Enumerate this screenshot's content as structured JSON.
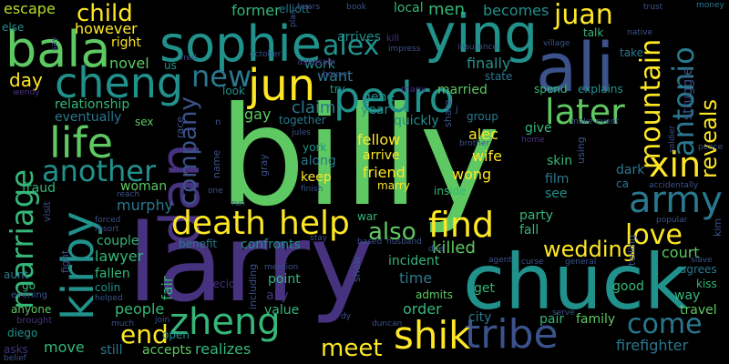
{
  "words": {
    "billy": "billy",
    "larry": "larry",
    "chuck": "chuck",
    "ali": "ali",
    "sophie": "sophie",
    "ying": "ying",
    "bala": "bala",
    "cheng": "cheng",
    "pedro": "pedro",
    "jun": "jun",
    "dan": "dan",
    "kirby": "kirby",
    "life": "life",
    "marriage": "marriage",
    "another": "another",
    "zheng": "zheng",
    "tribe": "tribe",
    "shik": "shik",
    "death": "death",
    "help": "help",
    "find": "find",
    "army": "army",
    "xin": "xin",
    "antonio": "antonio",
    "mountain": "mountain",
    "reveals": "reveals",
    "later": "later",
    "love": "love",
    "wedding": "wedding",
    "come": "come",
    "end": "end",
    "meet": "meet",
    "alex": "alex",
    "juan": "juan",
    "child": "child",
    "new": "new",
    "company": "company",
    "also": "also",
    "escape": "escape",
    "however": "however",
    "former": "former",
    "elliott": "elliott",
    "becomes": "becomes",
    "men": "men",
    "finally": "finally",
    "want": "want",
    "work": "work",
    "novel": "novel",
    "day": "day",
    "relationship": "relationship",
    "eventually": "eventually",
    "killed": "killed",
    "fellow": "fellow",
    "wife": "wife",
    "friend": "friend",
    "wong": "wong",
    "arrive": "arrive",
    "alec": "alec",
    "claim": "claim",
    "keep": "keep",
    "along": "along",
    "york": "york",
    "gene": "gene",
    "year": "year",
    "married": "married",
    "quickly": "quickly",
    "gay": "gay",
    "together": "together",
    "look": "look",
    "woman": "woman",
    "murphy": "murphy",
    "lawyer": "lawyer",
    "couple": "couple",
    "fallen": "fallen",
    "colin": "colin",
    "people": "people",
    "move": "move",
    "still": "still",
    "accepts": "accepts",
    "realizes": "realizes",
    "fair": "fair",
    "value": "value",
    "point": "point",
    "ally": "ally",
    "confronts": "confronts",
    "benefit": "benefit",
    "war": "war",
    "party": "party",
    "fall": "fall",
    "incident": "incident",
    "time": "time",
    "admits": "admits",
    "order": "order",
    "city": "city",
    "get": "get",
    "pair": "pair",
    "family": "family",
    "firefighter": "firefighter",
    "court": "court",
    "agrees": "agrees",
    "kiss": "kiss",
    "way": "way",
    "travel": "travel",
    "good": "good",
    "skin": "skin",
    "film": "film",
    "see": "see",
    "inside": "inside",
    "dark": "dark",
    "ca": "ca",
    "fraud": "fraud",
    "sex": "sex",
    "aunt": "aunt",
    "go": "go",
    "anyone": "anyone",
    "diego": "diego",
    "asks": "asks",
    "evening": "evening",
    "brought": "brought",
    "struggle": "struggle",
    "explains": "explains",
    "spend": "spend",
    "give": "give",
    "group": "group",
    "state": "state",
    "talk": "talk",
    "take": "take",
    "native": "native",
    "money": "money",
    "trust": "trust",
    "village": "village",
    "insurance": "insurance",
    "arrives": "arrives",
    "local": "local",
    "book": "book",
    "kill": "kill",
    "impress": "impress",
    "assassin": "assassin",
    "house": "house",
    "many": "many",
    "try": "try",
    "plan": "plan",
    "hears": "hears",
    "fred": "fred",
    "october": "october",
    "us": "us",
    "right": "right",
    "else": "else",
    "say": "say",
    "wendy": "wendy",
    "race": "race",
    "name": "name",
    "one": "one",
    "run": "run",
    "visit": "visit",
    "fight": "fight",
    "forced": "forced",
    "resort": "resort",
    "reach": "reach",
    "helped": "helped",
    "much": "much",
    "join": "join",
    "open": "open",
    "decide": "decide",
    "mention": "mention",
    "including": "including",
    "stay": "stay",
    "show": "show",
    "dy": "dy",
    "duncan": "duncan",
    "based": "based",
    "husband": "husband",
    "agent": "agent",
    "curse": "curse",
    "general": "general",
    "serve": "serve",
    "slave": "slave",
    "popular": "popular",
    "kim": "kim",
    "accidentally": "accidentally",
    "soldier": "soldier",
    "make_event": "make event",
    "peace": "peace",
    "telling": "telling",
    "using": "using",
    "home": "home",
    "brother": "brother",
    "share": "share",
    "jules": "jules",
    "finish": "finish",
    "reaching": "reaching",
    "sell": "sell",
    "due": "due",
    "n": "n",
    "j": "j",
    "gray": "gray",
    "marry": "marry",
    "belief": "belief"
  }
}
